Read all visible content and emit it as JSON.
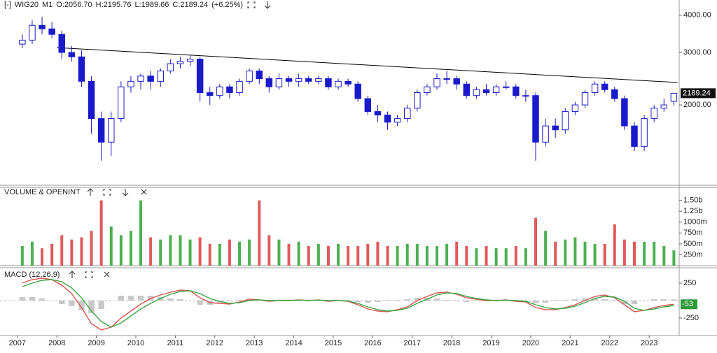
{
  "chart_data": [
    {
      "type": "candlestick",
      "title": "WIG20",
      "info": [
        "[-]",
        "M1",
        "O:2056.70",
        "H:2195.76",
        "L:1989.66",
        "C:2189.24",
        "(+6.25%)"
      ],
      "x": [
        2007.125,
        2007.375,
        2007.625,
        2007.875,
        2008.125,
        2008.375,
        2008.625,
        2008.875,
        2009.125,
        2009.375,
        2009.625,
        2009.875,
        2010.125,
        2010.375,
        2010.625,
        2010.875,
        2011.125,
        2011.375,
        2011.625,
        2011.875,
        2012.125,
        2012.375,
        2012.625,
        2012.875,
        2013.125,
        2013.375,
        2013.625,
        2013.875,
        2014.125,
        2014.375,
        2014.625,
        2014.875,
        2015.125,
        2015.375,
        2015.625,
        2015.875,
        2016.125,
        2016.375,
        2016.625,
        2016.875,
        2017.125,
        2017.375,
        2017.625,
        2017.875,
        2018.125,
        2018.375,
        2018.625,
        2018.875,
        2019.125,
        2019.375,
        2019.625,
        2019.875,
        2020.125,
        2020.375,
        2020.625,
        2020.875,
        2021.125,
        2021.375,
        2021.625,
        2021.875,
        2022.125,
        2022.375,
        2022.625,
        2022.875,
        2023.125,
        2023.375,
        2023.625
      ],
      "open": [
        3200,
        3300,
        3700,
        3600,
        3450,
        3000,
        2900,
        2400,
        1800,
        1500,
        1800,
        2300,
        2400,
        2500,
        2400,
        2600,
        2750,
        2800,
        2850,
        2200,
        2150,
        2300,
        2200,
        2400,
        2600,
        2450,
        2300,
        2450,
        2400,
        2450,
        2400,
        2450,
        2300,
        2400,
        2350,
        2100,
        1900,
        1850,
        1750,
        1800,
        1950,
        2200,
        2300,
        2450,
        2450,
        2350,
        2150,
        2250,
        2200,
        2300,
        2300,
        2150,
        2150,
        1500,
        1700,
        1650,
        1900,
        2000,
        2200,
        2350,
        2250,
        2100,
        1700,
        1450,
        1800,
        1950,
        2056.7
      ],
      "high": [
        3450,
        3850,
        3950,
        3800,
        3550,
        3150,
        3050,
        2500,
        1900,
        1900,
        2400,
        2500,
        2550,
        2600,
        2650,
        2850,
        2900,
        2950,
        2900,
        2300,
        2350,
        2350,
        2450,
        2650,
        2650,
        2500,
        2550,
        2500,
        2550,
        2500,
        2500,
        2500,
        2450,
        2450,
        2400,
        2150,
        2000,
        1900,
        1850,
        2000,
        2250,
        2350,
        2550,
        2600,
        2500,
        2400,
        2300,
        2350,
        2350,
        2400,
        2350,
        2250,
        2200,
        1800,
        1800,
        1950,
        2050,
        2250,
        2400,
        2400,
        2300,
        2150,
        1750,
        1850,
        2000,
        2100,
        2195.76
      ],
      "low": [
        3100,
        3200,
        3450,
        3350,
        2850,
        2800,
        2300,
        1600,
        1300,
        1350,
        1750,
        2200,
        2250,
        2250,
        2300,
        2550,
        2650,
        2700,
        2050,
        2000,
        2100,
        2100,
        2150,
        2350,
        2350,
        2200,
        2250,
        2300,
        2300,
        2350,
        2350,
        2250,
        2250,
        2300,
        2050,
        1850,
        1750,
        1650,
        1700,
        1750,
        1900,
        2150,
        2250,
        2350,
        2250,
        2100,
        2100,
        2150,
        2150,
        2250,
        2100,
        2050,
        1300,
        1450,
        1550,
        1600,
        1850,
        1950,
        2150,
        2200,
        2050,
        1650,
        1400,
        1400,
        1750,
        1900,
        1989.66
      ],
      "close": [
        3300,
        3700,
        3600,
        3450,
        3000,
        2900,
        2400,
        1800,
        1500,
        1800,
        2300,
        2400,
        2500,
        2400,
        2600,
        2750,
        2800,
        2850,
        2200,
        2150,
        2300,
        2200,
        2400,
        2600,
        2450,
        2300,
        2450,
        2400,
        2450,
        2400,
        2450,
        2300,
        2400,
        2350,
        2100,
        1900,
        1850,
        1750,
        1800,
        1950,
        2200,
        2300,
        2450,
        2450,
        2350,
        2150,
        2250,
        2200,
        2300,
        2300,
        2150,
        2150,
        1500,
        1700,
        1650,
        1900,
        2000,
        2200,
        2350,
        2250,
        2100,
        1700,
        1450,
        1800,
        1950,
        2000,
        2189.24
      ],
      "up_color": "#ffffff",
      "down_color": "#1a1acc",
      "edge_color": "#1a1acc",
      "log_scale": true,
      "ylim": [
        1075,
        4500
      ],
      "yticks": [
        {
          "value": 2000,
          "label": "2000.00"
        },
        {
          "value": 3000,
          "label": "3000.00"
        },
        {
          "value": 4000,
          "label": "4000.00"
        }
      ],
      "xlim": [
        2006.56,
        2023.76
      ],
      "xticks": [
        2007,
        2008,
        2009,
        2010,
        2011,
        2012,
        2013,
        2014,
        2015,
        2016,
        2017,
        2018,
        2019,
        2020,
        2021,
        2022,
        2023
      ],
      "trendline": {
        "x": [
          2008.0,
          2023.72
        ],
        "y": [
          3115,
          2378
        ]
      }
    },
    {
      "type": "bar",
      "title": "VOLUME & OPENINT",
      "values": [
        450,
        550,
        400,
        500,
        700,
        600,
        650,
        800,
        1500,
        900,
        700,
        800,
        1500,
        650,
        600,
        700,
        700,
        600,
        650,
        500,
        500,
        600,
        550,
        600,
        1500,
        700,
        600,
        500,
        550,
        450,
        500,
        450,
        500,
        450,
        450,
        500,
        550,
        450,
        450,
        500,
        500,
        450,
        450,
        500,
        550,
        450,
        400,
        450,
        400,
        400,
        450,
        400,
        1100,
        800,
        550,
        600,
        650,
        550,
        500,
        500,
        950,
        600,
        550,
        550,
        550,
        450,
        350
      ],
      "up_color": "#4caf50",
      "down_color": "#e05a5a",
      "ylim": [
        0,
        1800
      ],
      "yticks": [
        {
          "value": 250,
          "label": "250m"
        },
        {
          "value": 500,
          "label": "500m"
        },
        {
          "value": 750,
          "label": "750m"
        },
        {
          "value": 1000,
          "label": "1000m"
        },
        {
          "value": 1250,
          "label": "1.25b"
        },
        {
          "value": 1500,
          "label": "1.50b"
        }
      ]
    },
    {
      "type": "line",
      "title": "MACD (12,26,9)",
      "series": [
        {
          "style": "bar",
          "color": "#c8c8c8",
          "values": [
            50,
            50,
            30,
            0,
            -50,
            -80,
            -140,
            -180,
            -120,
            0,
            70,
            70,
            70,
            70,
            50,
            30,
            20,
            0,
            -60,
            -60,
            -30,
            -10,
            10,
            20,
            0,
            -10,
            0,
            0,
            5,
            -3,
            5,
            -10,
            0,
            -5,
            -20,
            -30,
            -20,
            -10,
            10,
            20,
            40,
            40,
            30,
            10,
            -10,
            -20,
            -10,
            -10,
            0,
            5,
            -10,
            -10,
            -40,
            -30,
            -10,
            10,
            20,
            30,
            30,
            20,
            -10,
            -50,
            -50,
            0,
            20,
            20,
            17
          ]
        },
        {
          "style": "line",
          "color": "#d9534f",
          "values": [
            250,
            300,
            320,
            300,
            220,
            100,
            -100,
            -330,
            -420,
            -380,
            -250,
            -150,
            -50,
            30,
            80,
            120,
            150,
            140,
            40,
            -30,
            -40,
            -50,
            -20,
            20,
            10,
            -10,
            0,
            0,
            10,
            0,
            10,
            -10,
            0,
            -10,
            -60,
            -120,
            -150,
            -160,
            -130,
            -90,
            0,
            60,
            110,
            120,
            90,
            40,
            20,
            0,
            0,
            10,
            -10,
            -20,
            -100,
            -130,
            -130,
            -100,
            -60,
            0,
            60,
            80,
            40,
            -60,
            -160,
            -140,
            -100,
            -70,
            -53
          ]
        },
        {
          "style": "line",
          "color": "#3aa645",
          "values": [
            200,
            250,
            290,
            300,
            270,
            180,
            40,
            -150,
            -300,
            -380,
            -320,
            -220,
            -120,
            -40,
            30,
            90,
            130,
            140,
            100,
            30,
            -10,
            -40,
            -30,
            0,
            10,
            0,
            0,
            0,
            5,
            3,
            5,
            0,
            0,
            -5,
            -40,
            -90,
            -130,
            -150,
            -140,
            -110,
            -40,
            20,
            80,
            110,
            100,
            60,
            30,
            10,
            0,
            5,
            0,
            -10,
            -60,
            -100,
            -120,
            -110,
            -80,
            -30,
            30,
            60,
            50,
            -10,
            -110,
            -140,
            -120,
            -90,
            -70
          ]
        }
      ],
      "ylim": [
        -500,
        470
      ],
      "yticks": [
        -250,
        250
      ]
    }
  ]
}
